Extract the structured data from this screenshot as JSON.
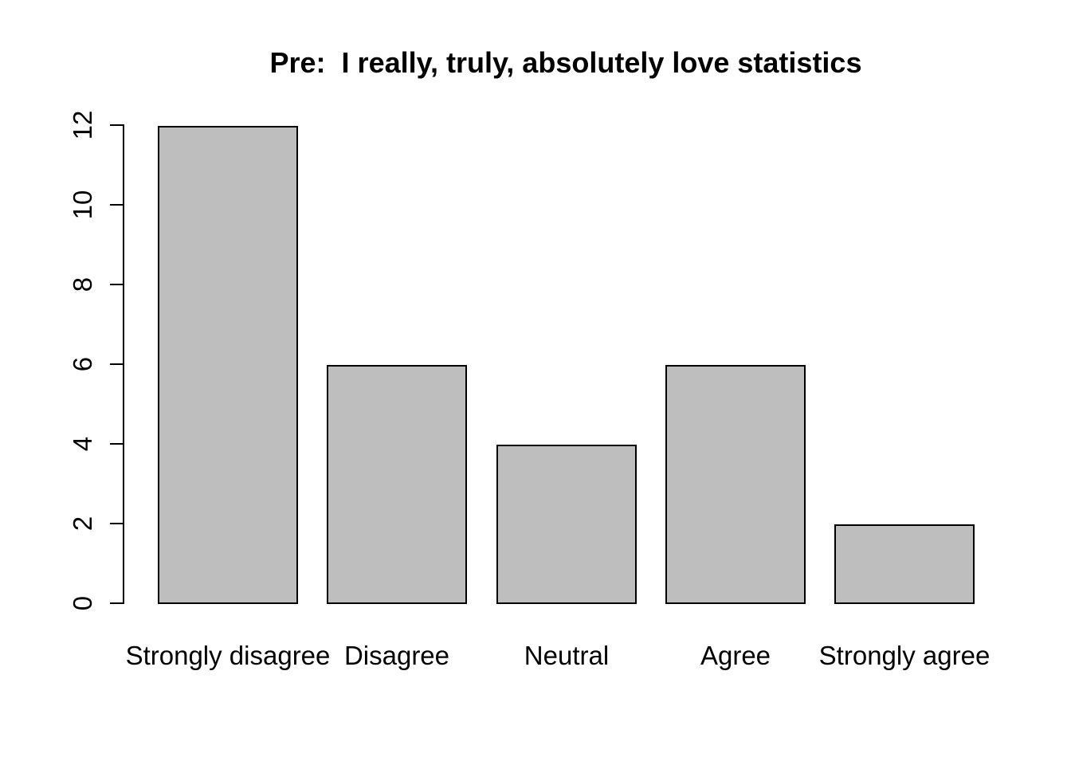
{
  "chart_data": {
    "type": "bar",
    "title": "Pre:  I really, truly, absolutely love statistics",
    "categories": [
      "Strongly disagree",
      "Disagree",
      "Neutral",
      "Agree",
      "Strongly agree"
    ],
    "values": [
      12,
      6,
      4,
      6,
      2
    ],
    "xlabel": "",
    "ylabel": "",
    "ylim": [
      0,
      12
    ],
    "yticks": [
      0,
      2,
      4,
      6,
      8,
      10,
      12
    ],
    "grid": false,
    "legend": null,
    "colors": {
      "bar_fill": "#BEBEBE",
      "bar_border": "#000000",
      "axis": "#000000",
      "text": "#000000",
      "background": "#FFFFFF"
    }
  }
}
